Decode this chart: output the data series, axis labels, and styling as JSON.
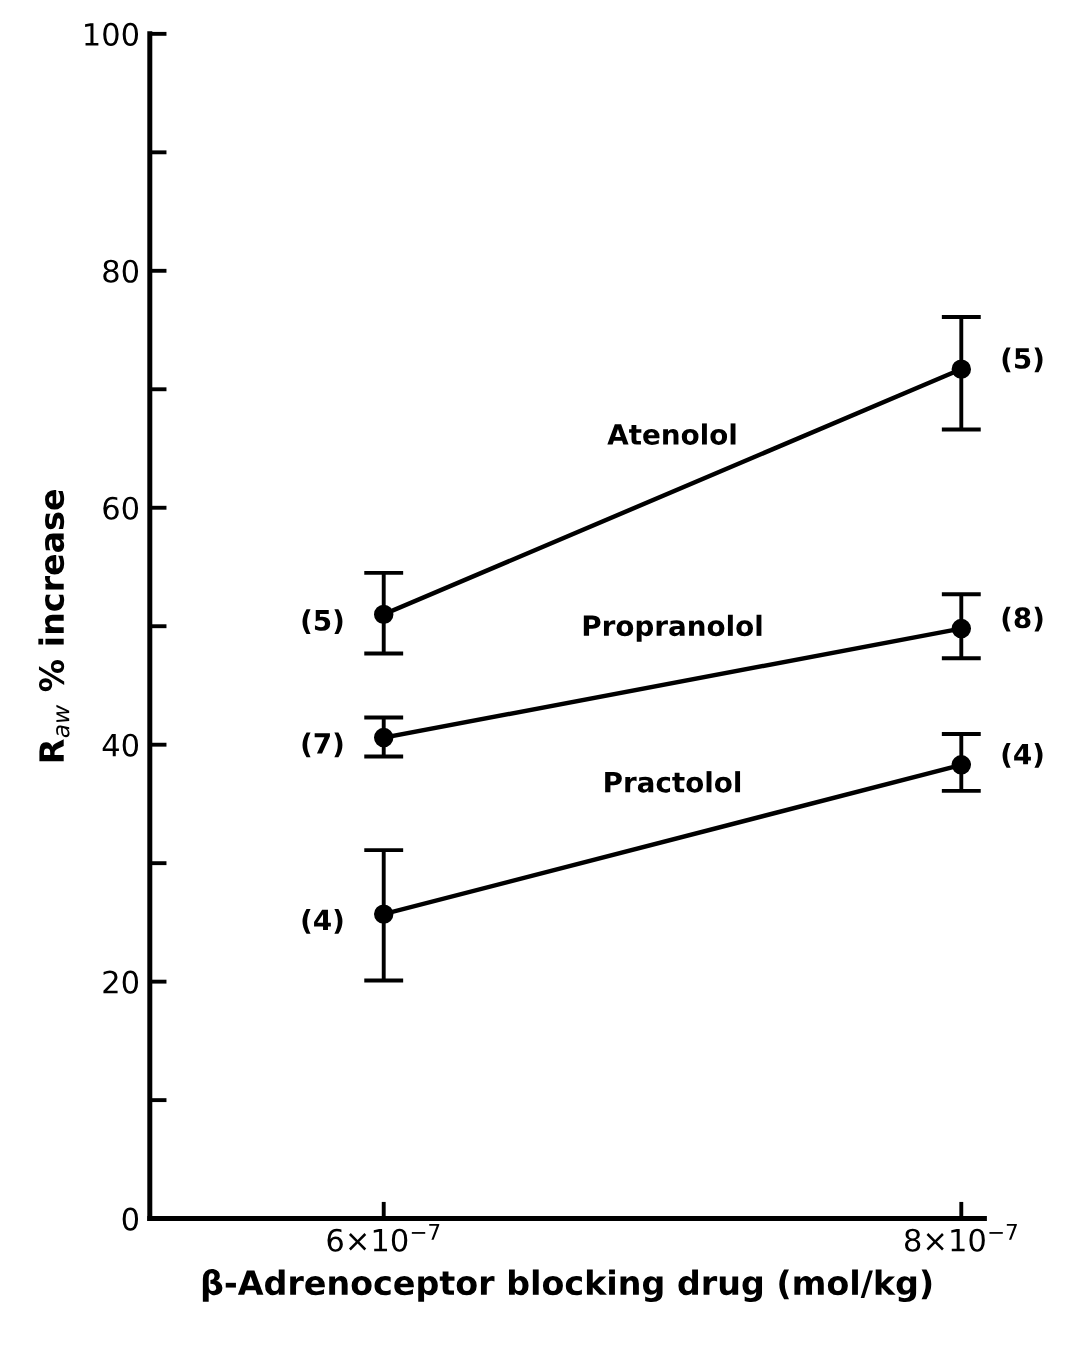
{
  "chart_data": {
    "type": "line",
    "xlabel": "β-Adrenoceptor blocking drug (mol/kg)",
    "ylabel": "R$_{aw}$ % increase",
    "x": [
      6e-07,
      8e-07
    ],
    "series": [
      {
        "name": "Atenolol",
        "color": "#000000",
        "values": [
          51.0,
          71.7
        ],
        "errors": [
          [
            47.7,
            54.5
          ],
          [
            66.6,
            76.1
          ]
        ]
      },
      {
        "name": "Propranolol",
        "color": "#000000",
        "values": [
          40.6,
          49.8
        ],
        "errors": [
          [
            39.0,
            42.3
          ],
          [
            47.3,
            52.7
          ]
        ]
      },
      {
        "name": "Practolol",
        "color": "#000000",
        "values": [
          25.7,
          38.3
        ],
        "errors": [
          [
            20.1,
            31.1
          ],
          [
            36.1,
            40.9
          ]
        ]
      }
    ],
    "xlim": [
      5.19e-07,
      8.08e-07
    ],
    "xticks": [
      {
        "value": 6e-07,
        "label": "6×10$^{−7}$"
      },
      {
        "value": 8e-07,
        "label": "8×10$^{−7}$"
      }
    ],
    "ylim": [
      0,
      100
    ],
    "yticks": [
      0,
      {
        "value": 10,
        "label": null
      },
      20,
      {
        "value": 30,
        "label": null
      },
      40,
      {
        "value": 50,
        "label": null
      },
      60,
      {
        "value": 70,
        "label": null
      },
      80,
      {
        "value": 90,
        "label": null
      },
      100
    ],
    "annotations": [
      "(5)",
      "(5)",
      "(7)",
      "(8)",
      "(4)",
      "(4)"
    ],
    "marker": "circle",
    "line_style": "solid",
    "grid": false,
    "legend": false
  }
}
